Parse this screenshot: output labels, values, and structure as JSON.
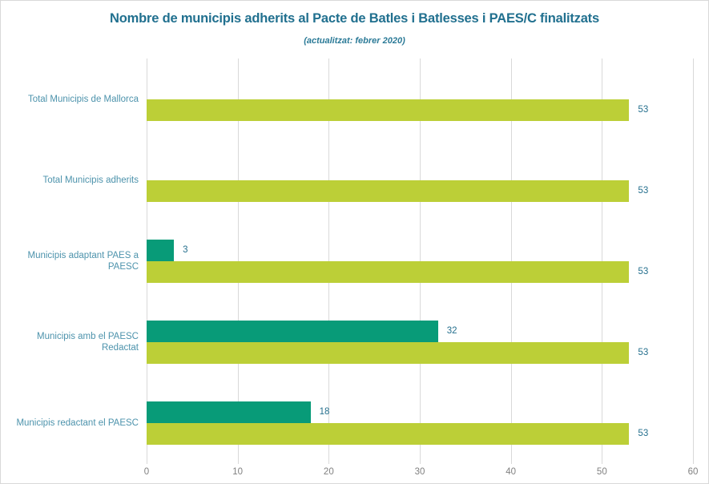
{
  "header": {
    "title": "Nombre de municipis adherits al Pacte de Batles i Batlesses i PAES/C finalitzats",
    "subtitle": "(actualitzat: febrer 2020)",
    "title_color": "#21708f"
  },
  "chart_data": {
    "type": "bar",
    "orientation": "horizontal",
    "title": "Nombre de municipis adherits al Pacte de Batles i Batlesses i PAES/C finalitzats",
    "subtitle": "(actualitzat: febrer 2020)",
    "categories": [
      "Total Municipis de Mallorca",
      "Total Municipis adherits",
      "Municipis adaptant PAES a PAESC",
      "Municipis amb el  PAESC Redactat",
      "Municipis redactant el PAESC"
    ],
    "series": [
      {
        "name": "series-teal",
        "color": "#089b78",
        "values": [
          0,
          0,
          3,
          32,
          18
        ]
      },
      {
        "name": "series-green",
        "color": "#bccf37",
        "values": [
          53,
          53,
          53,
          53,
          53
        ]
      }
    ],
    "xlabel": "",
    "ylabel": "",
    "xlim": [
      0,
      60
    ],
    "xticks": [
      "0",
      "10",
      "20",
      "30",
      "40",
      "50",
      "60"
    ],
    "grid": "vertical",
    "gridline_color": "#d9d9d9",
    "tick_label_color": "#808080",
    "category_label_color": "#4d93ac",
    "value_label_color": "#26708e",
    "legend": "none"
  }
}
